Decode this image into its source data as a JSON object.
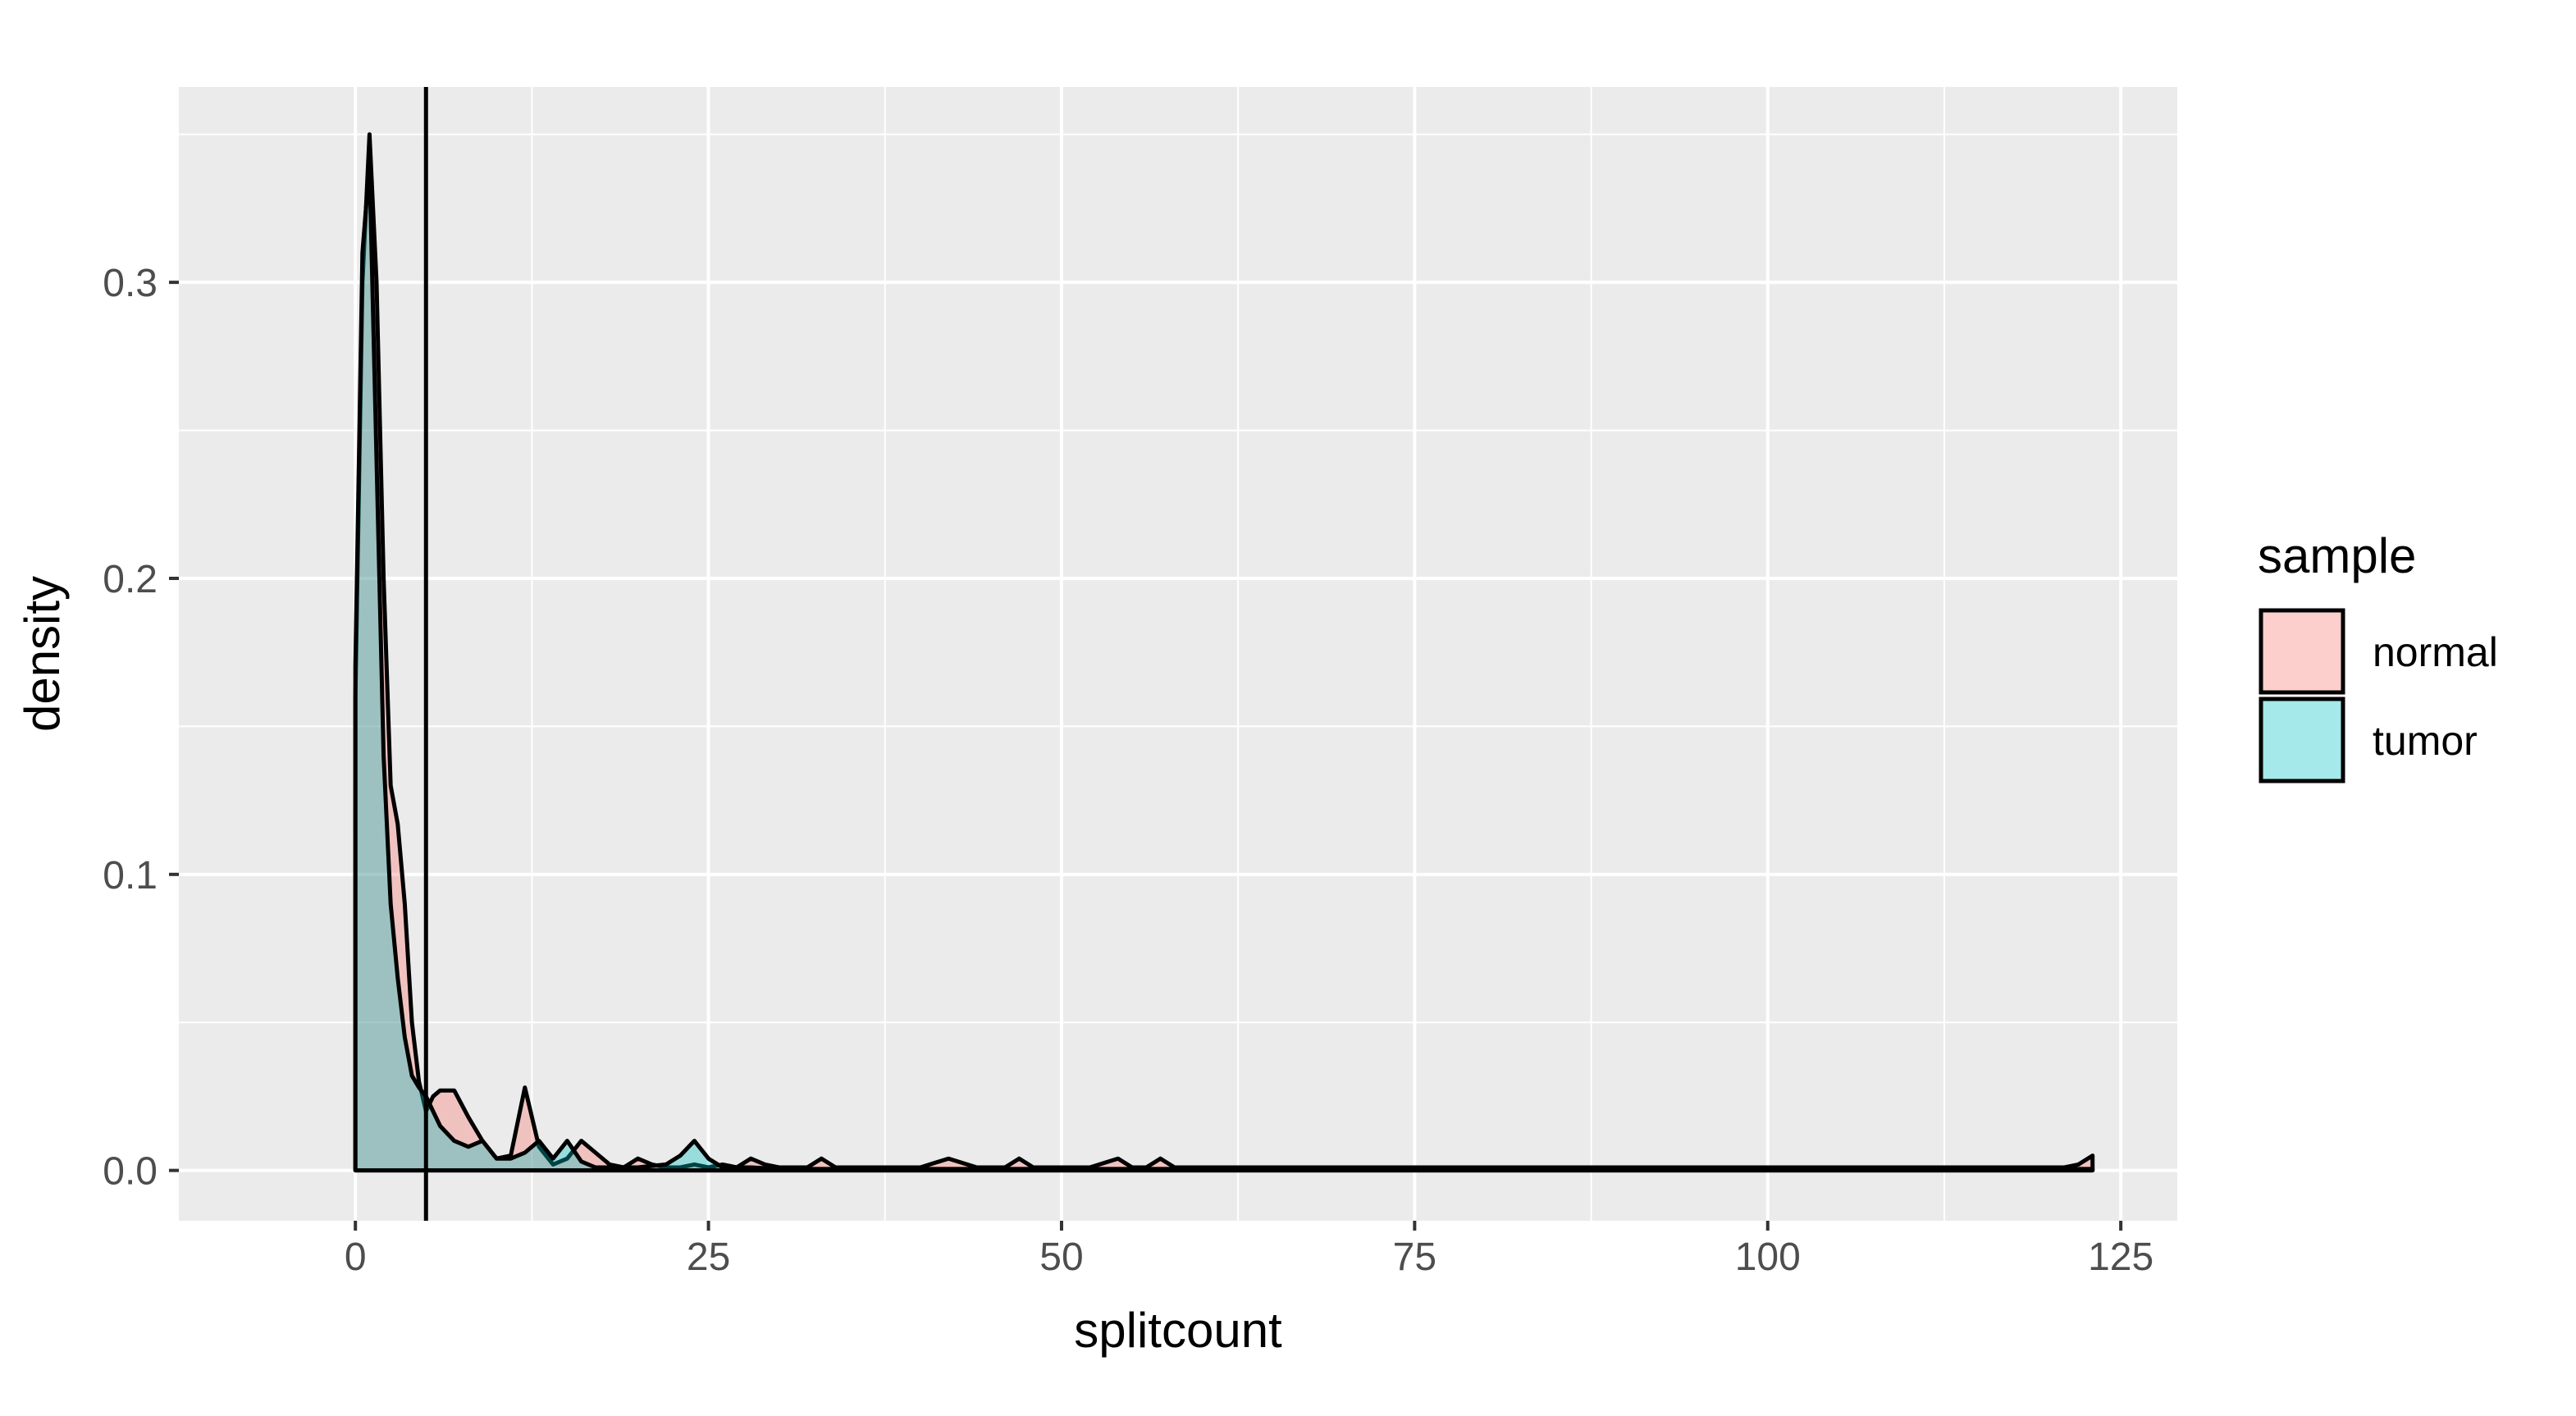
{
  "chart_data": {
    "type": "area",
    "subtype": "density",
    "title": "",
    "xlabel": "splitcount",
    "ylabel": "density",
    "xlim": [
      -12.5,
      129
    ],
    "ylim": [
      -0.017,
      0.366
    ],
    "x_ticks": [
      0,
      25,
      50,
      75,
      100,
      125
    ],
    "x_tick_labels": [
      "0",
      "25",
      "50",
      "75",
      "100",
      "125"
    ],
    "y_ticks": [
      0.0,
      0.1,
      0.2,
      0.3
    ],
    "y_tick_labels": [
      "0.0",
      "0.1",
      "0.2",
      "0.3"
    ],
    "grid": true,
    "vline": {
      "x": 5
    },
    "legend": {
      "title": "sample",
      "position": "right",
      "entries": [
        {
          "label": "normal",
          "color": "#F8766D"
        },
        {
          "label": "tumor",
          "color": "#00BFC4"
        }
      ]
    },
    "series": [
      {
        "name": "normal",
        "color": "#F8766D",
        "x": [
          0,
          0.5,
          1,
          1.5,
          2,
          2.5,
          3,
          3.5,
          4,
          4.5,
          5,
          5.5,
          6,
          7,
          8,
          9,
          10,
          11,
          12,
          13,
          14,
          15,
          16,
          17,
          18,
          19,
          20,
          21,
          22,
          23,
          24,
          25,
          26,
          27,
          28,
          29,
          30,
          32,
          33,
          34,
          36,
          40,
          42,
          44,
          46,
          47,
          48,
          50,
          52,
          54,
          55,
          56,
          57,
          58,
          60,
          70,
          80,
          90,
          100,
          110,
          120,
          121,
          122,
          123
        ],
        "y": [
          0.16,
          0.3,
          0.35,
          0.3,
          0.2,
          0.13,
          0.117,
          0.09,
          0.05,
          0.03,
          0.02,
          0.025,
          0.027,
          0.027,
          0.018,
          0.01,
          0.004,
          0.005,
          0.028,
          0.008,
          0.002,
          0.004,
          0.01,
          0.006,
          0.002,
          0.001,
          0.004,
          0.002,
          0.001,
          0.001,
          0.002,
          0.001,
          0.002,
          0.001,
          0.004,
          0.002,
          0.001,
          0.001,
          0.004,
          0.001,
          0.001,
          0.001,
          0.004,
          0.001,
          0.001,
          0.004,
          0.001,
          0.001,
          0.001,
          0.004,
          0.001,
          0.001,
          0.004,
          0.001,
          0.001,
          0.001,
          0.001,
          0.001,
          0.001,
          0.001,
          0.001,
          0.001,
          0.002,
          0.005
        ]
      },
      {
        "name": "tumor",
        "color": "#00BFC4",
        "x": [
          0,
          0.5,
          1,
          1.5,
          2,
          2.5,
          3,
          3.5,
          4,
          4.5,
          5,
          5.5,
          6,
          7,
          8,
          9,
          10,
          11,
          12,
          13,
          14,
          15,
          16,
          17,
          18,
          20,
          22,
          23,
          24,
          25,
          26,
          28,
          30,
          40,
          50,
          60,
          80,
          100,
          120,
          123
        ],
        "y": [
          0.17,
          0.31,
          0.34,
          0.24,
          0.14,
          0.09,
          0.065,
          0.045,
          0.032,
          0.028,
          0.025,
          0.02,
          0.015,
          0.01,
          0.008,
          0.01,
          0.004,
          0.004,
          0.006,
          0.01,
          0.004,
          0.01,
          0.003,
          0.001,
          0.001,
          0.001,
          0.002,
          0.005,
          0.01,
          0.004,
          0.001,
          0.001,
          0.0005,
          0.0005,
          0.0005,
          0.0005,
          0.0005,
          0.0005,
          0.0005,
          0.0005
        ]
      }
    ]
  }
}
